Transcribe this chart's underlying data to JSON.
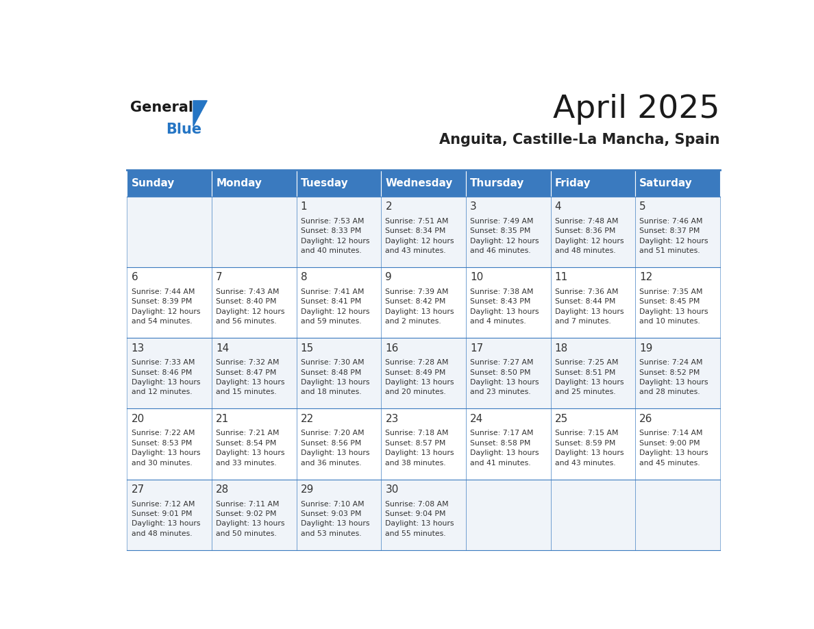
{
  "title": "April 2025",
  "subtitle": "Anguita, Castille-La Mancha, Spain",
  "days_of_week": [
    "Sunday",
    "Monday",
    "Tuesday",
    "Wednesday",
    "Thursday",
    "Friday",
    "Saturday"
  ],
  "header_bg_color": "#3a7abf",
  "header_text_color": "#ffffff",
  "border_color": "#3a7abf",
  "text_color": "#333333",
  "day_num_color": "#333333",
  "calendar_data": [
    {
      "day": 1,
      "col": 2,
      "row": 0,
      "sunrise": "7:53 AM",
      "sunset": "8:33 PM",
      "daylight": "12 hours and 40 minutes."
    },
    {
      "day": 2,
      "col": 3,
      "row": 0,
      "sunrise": "7:51 AM",
      "sunset": "8:34 PM",
      "daylight": "12 hours and 43 minutes."
    },
    {
      "day": 3,
      "col": 4,
      "row": 0,
      "sunrise": "7:49 AM",
      "sunset": "8:35 PM",
      "daylight": "12 hours and 46 minutes."
    },
    {
      "day": 4,
      "col": 5,
      "row": 0,
      "sunrise": "7:48 AM",
      "sunset": "8:36 PM",
      "daylight": "12 hours and 48 minutes."
    },
    {
      "day": 5,
      "col": 6,
      "row": 0,
      "sunrise": "7:46 AM",
      "sunset": "8:37 PM",
      "daylight": "12 hours and 51 minutes."
    },
    {
      "day": 6,
      "col": 0,
      "row": 1,
      "sunrise": "7:44 AM",
      "sunset": "8:39 PM",
      "daylight": "12 hours and 54 minutes."
    },
    {
      "day": 7,
      "col": 1,
      "row": 1,
      "sunrise": "7:43 AM",
      "sunset": "8:40 PM",
      "daylight": "12 hours and 56 minutes."
    },
    {
      "day": 8,
      "col": 2,
      "row": 1,
      "sunrise": "7:41 AM",
      "sunset": "8:41 PM",
      "daylight": "12 hours and 59 minutes."
    },
    {
      "day": 9,
      "col": 3,
      "row": 1,
      "sunrise": "7:39 AM",
      "sunset": "8:42 PM",
      "daylight": "13 hours and 2 minutes."
    },
    {
      "day": 10,
      "col": 4,
      "row": 1,
      "sunrise": "7:38 AM",
      "sunset": "8:43 PM",
      "daylight": "13 hours and 4 minutes."
    },
    {
      "day": 11,
      "col": 5,
      "row": 1,
      "sunrise": "7:36 AM",
      "sunset": "8:44 PM",
      "daylight": "13 hours and 7 minutes."
    },
    {
      "day": 12,
      "col": 6,
      "row": 1,
      "sunrise": "7:35 AM",
      "sunset": "8:45 PM",
      "daylight": "13 hours and 10 minutes."
    },
    {
      "day": 13,
      "col": 0,
      "row": 2,
      "sunrise": "7:33 AM",
      "sunset": "8:46 PM",
      "daylight": "13 hours and 12 minutes."
    },
    {
      "day": 14,
      "col": 1,
      "row": 2,
      "sunrise": "7:32 AM",
      "sunset": "8:47 PM",
      "daylight": "13 hours and 15 minutes."
    },
    {
      "day": 15,
      "col": 2,
      "row": 2,
      "sunrise": "7:30 AM",
      "sunset": "8:48 PM",
      "daylight": "13 hours and 18 minutes."
    },
    {
      "day": 16,
      "col": 3,
      "row": 2,
      "sunrise": "7:28 AM",
      "sunset": "8:49 PM",
      "daylight": "13 hours and 20 minutes."
    },
    {
      "day": 17,
      "col": 4,
      "row": 2,
      "sunrise": "7:27 AM",
      "sunset": "8:50 PM",
      "daylight": "13 hours and 23 minutes."
    },
    {
      "day": 18,
      "col": 5,
      "row": 2,
      "sunrise": "7:25 AM",
      "sunset": "8:51 PM",
      "daylight": "13 hours and 25 minutes."
    },
    {
      "day": 19,
      "col": 6,
      "row": 2,
      "sunrise": "7:24 AM",
      "sunset": "8:52 PM",
      "daylight": "13 hours and 28 minutes."
    },
    {
      "day": 20,
      "col": 0,
      "row": 3,
      "sunrise": "7:22 AM",
      "sunset": "8:53 PM",
      "daylight": "13 hours and 30 minutes."
    },
    {
      "day": 21,
      "col": 1,
      "row": 3,
      "sunrise": "7:21 AM",
      "sunset": "8:54 PM",
      "daylight": "13 hours and 33 minutes."
    },
    {
      "day": 22,
      "col": 2,
      "row": 3,
      "sunrise": "7:20 AM",
      "sunset": "8:56 PM",
      "daylight": "13 hours and 36 minutes."
    },
    {
      "day": 23,
      "col": 3,
      "row": 3,
      "sunrise": "7:18 AM",
      "sunset": "8:57 PM",
      "daylight": "13 hours and 38 minutes."
    },
    {
      "day": 24,
      "col": 4,
      "row": 3,
      "sunrise": "7:17 AM",
      "sunset": "8:58 PM",
      "daylight": "13 hours and 41 minutes."
    },
    {
      "day": 25,
      "col": 5,
      "row": 3,
      "sunrise": "7:15 AM",
      "sunset": "8:59 PM",
      "daylight": "13 hours and 43 minutes."
    },
    {
      "day": 26,
      "col": 6,
      "row": 3,
      "sunrise": "7:14 AM",
      "sunset": "9:00 PM",
      "daylight": "13 hours and 45 minutes."
    },
    {
      "day": 27,
      "col": 0,
      "row": 4,
      "sunrise": "7:12 AM",
      "sunset": "9:01 PM",
      "daylight": "13 hours and 48 minutes."
    },
    {
      "day": 28,
      "col": 1,
      "row": 4,
      "sunrise": "7:11 AM",
      "sunset": "9:02 PM",
      "daylight": "13 hours and 50 minutes."
    },
    {
      "day": 29,
      "col": 2,
      "row": 4,
      "sunrise": "7:10 AM",
      "sunset": "9:03 PM",
      "daylight": "13 hours and 53 minutes."
    },
    {
      "day": 30,
      "col": 3,
      "row": 4,
      "sunrise": "7:08 AM",
      "sunset": "9:04 PM",
      "daylight": "13 hours and 55 minutes."
    }
  ],
  "num_rows": 5,
  "num_cols": 7,
  "logo_text_general": "General",
  "logo_text_blue": "Blue"
}
